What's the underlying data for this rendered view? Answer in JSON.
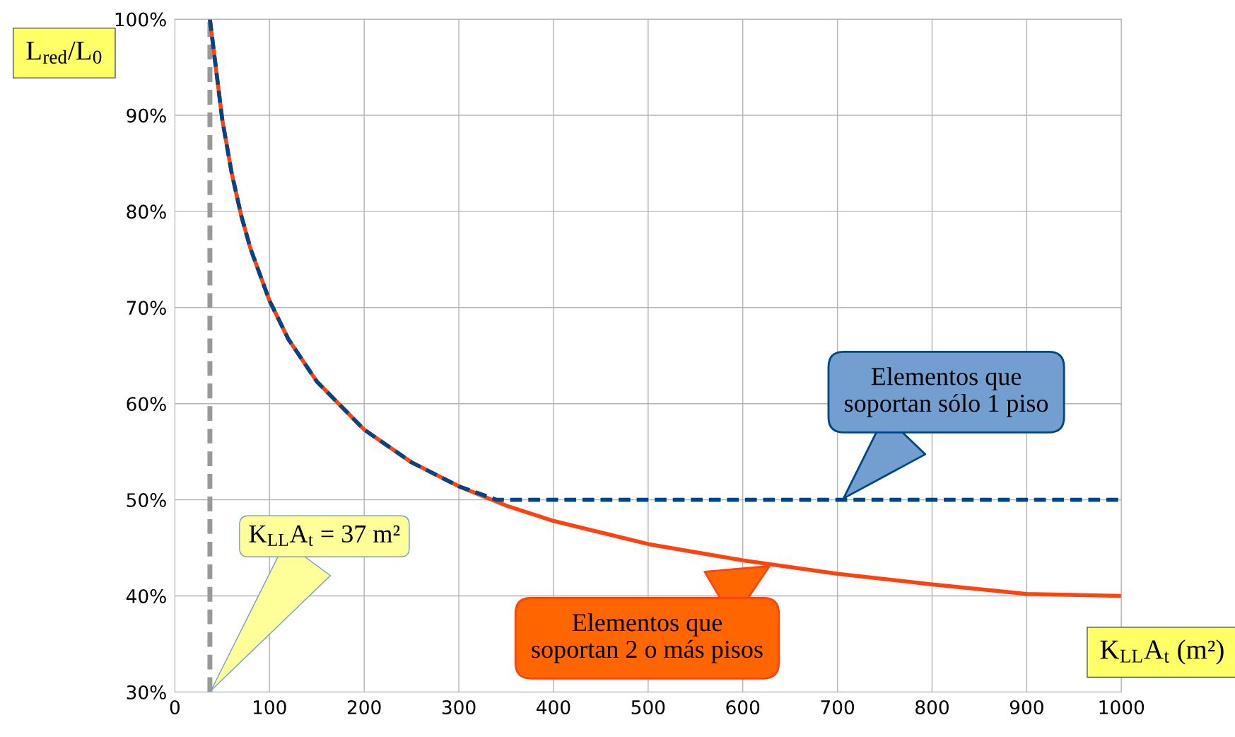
{
  "chart_data": {
    "type": "line",
    "xlabel": "K$_{LL}$A$_{t}$ (m²)",
    "ylabel": "L$_{red}$/L$_{0}$",
    "xlim": [
      0,
      1000
    ],
    "xticks": [
      0,
      100,
      200,
      300,
      400,
      500,
      600,
      700,
      800,
      900,
      1000
    ],
    "ylim": [
      30,
      100
    ],
    "yticks": [
      {
        "value": 30,
        "label": "30%"
      },
      {
        "value": 40,
        "label": "40%"
      },
      {
        "value": 50,
        "label": "50%"
      },
      {
        "value": 60,
        "label": "60%"
      },
      {
        "value": 70,
        "label": "70%"
      },
      {
        "value": 80,
        "label": "80%"
      },
      {
        "value": 90,
        "label": "90%"
      },
      {
        "value": 100,
        "label": "100%"
      }
    ],
    "grid": true,
    "marker": "none",
    "series": [
      {
        "name": "Elementos que\nsoportan 2 o más pisos",
        "color": "#ff420e",
        "line_style": "solid",
        "x": [
          37,
          50,
          60,
          70,
          80,
          100,
          120,
          150,
          200,
          250,
          300,
          350,
          400,
          500,
          600,
          700,
          800,
          900,
          1000
        ],
        "values": [
          100,
          89.6,
          84.0,
          79.6,
          76.1,
          70.7,
          66.7,
          62.3,
          57.3,
          53.9,
          51.4,
          49.4,
          47.8,
          45.4,
          43.7,
          42.3,
          41.2,
          40.2,
          40.0
        ]
      },
      {
        "name": "Elementos que\nsoportan sólo 1 piso",
        "color": "#004586",
        "line_style": "dashed",
        "x": [
          37,
          50,
          60,
          70,
          80,
          100,
          120,
          150,
          200,
          250,
          300,
          340,
          400,
          500,
          600,
          700,
          800,
          900,
          1000
        ],
        "values": [
          100,
          89.6,
          84.0,
          79.6,
          76.1,
          70.7,
          66.7,
          62.3,
          57.3,
          53.9,
          51.4,
          50,
          50,
          50,
          50,
          50,
          50,
          50,
          50
        ]
      }
    ],
    "ref_lines": [
      {
        "axis": "x",
        "value": 37,
        "label": "K$_{LL}$A$_{t}$ = 37 m²",
        "color": "#999999",
        "line_style": "dashed"
      }
    ]
  }
}
